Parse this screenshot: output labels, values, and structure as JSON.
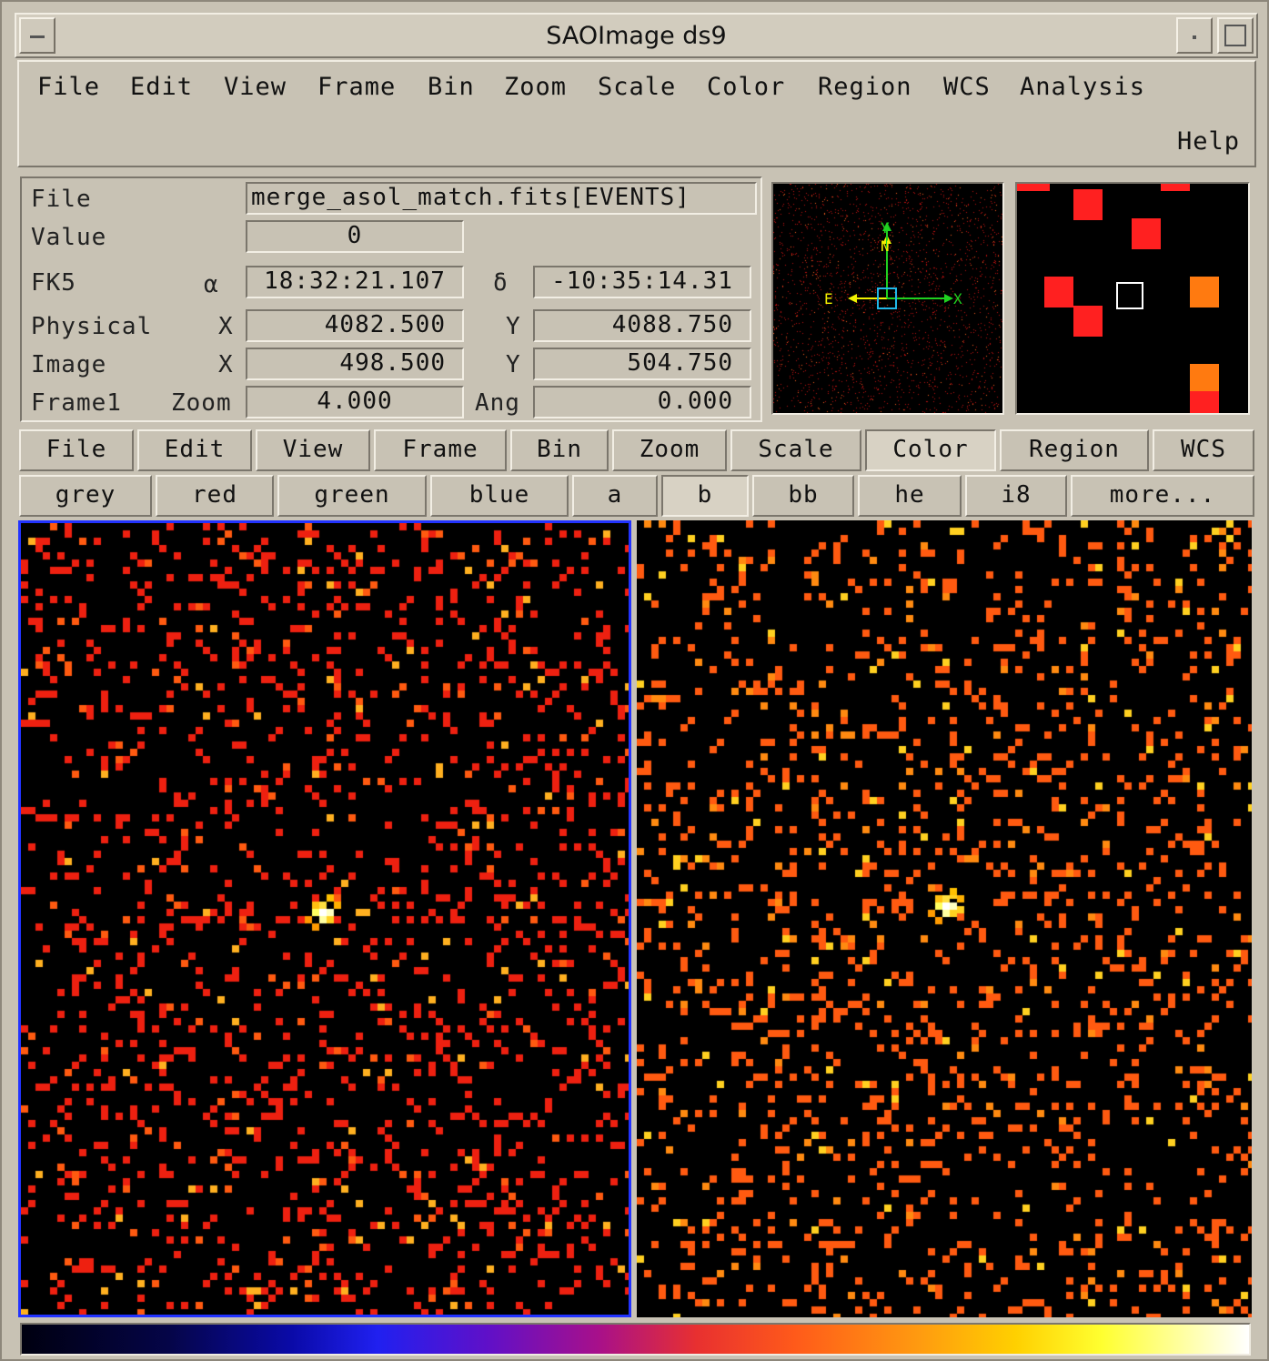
{
  "window": {
    "title": "SAOImage ds9"
  },
  "menubar": {
    "items": [
      "File",
      "Edit",
      "View",
      "Frame",
      "Bin",
      "Zoom",
      "Scale",
      "Color",
      "Region",
      "WCS",
      "Analysis"
    ],
    "help": "Help"
  },
  "info": {
    "file_label": "File",
    "file_value": "merge_asol_match.fits[EVENTS]",
    "value_label": "Value",
    "value_value": "0",
    "wcs_label": "FK5",
    "alpha_label": "α",
    "alpha_value": "18:32:21.107",
    "delta_label": "δ",
    "delta_value": "-10:35:14.31",
    "physical_label": "Physical",
    "physical_x_label": "X",
    "physical_x": "4082.500",
    "physical_y_label": "Y",
    "physical_y": "4088.750",
    "image_label": "Image",
    "image_x_label": "X",
    "image_x": "498.500",
    "image_y_label": "Y",
    "image_y": "504.750",
    "frame_label": "Frame1",
    "zoom_label": "Zoom",
    "zoom_value": "4.000",
    "angle_label": "Ang",
    "angle_value": "0.000"
  },
  "panner": {
    "north": "N",
    "y_axis": "Y",
    "east": "E",
    "x_axis": "X"
  },
  "buttonbar": {
    "main": [
      "File",
      "Edit",
      "View",
      "Frame",
      "Bin",
      "Zoom",
      "Scale",
      "Color",
      "Region",
      "WCS"
    ],
    "main_selected": "Color",
    "colors": [
      "grey",
      "red",
      "green",
      "blue",
      "a",
      "b",
      "bb",
      "he",
      "i8",
      "more..."
    ],
    "color_selected": "b"
  },
  "frames": {
    "active_border_color": "#2233ff",
    "frame1_colormap": "red",
    "frame2_colormap": "orange"
  }
}
